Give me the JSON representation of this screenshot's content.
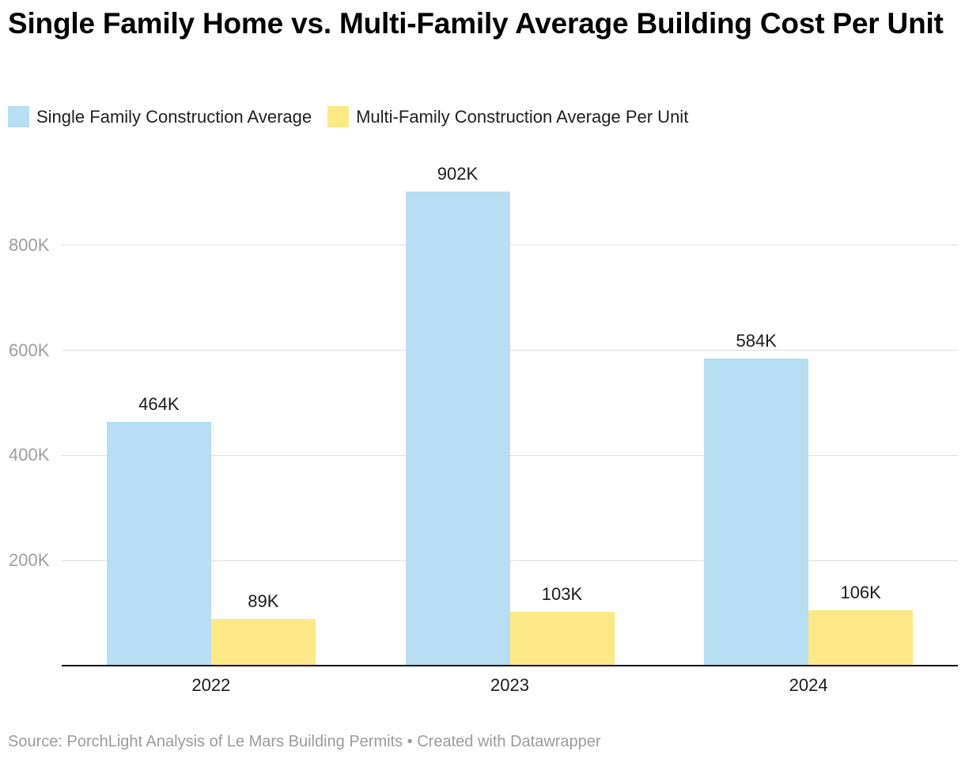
{
  "title": "Single Family Home vs. Multi-Family Average Building Cost Per Unit",
  "legend": [
    {
      "label": "Single Family Construction Average",
      "color": "#b7def2"
    },
    {
      "label": "Multi-Family Construction Average Per Unit",
      "color": "#fce985"
    }
  ],
  "source": "Source: PorchLight Analysis of Le Mars Building Permits • Created with Datawrapper",
  "colors": {
    "single_family": "#b7def2",
    "multi_family": "#fce985",
    "gridline": "#dfdfdf",
    "axis_line": "#141414",
    "tick_label": "#9d9d9d",
    "value_label": "#1b1b1b"
  },
  "chart_data": {
    "type": "bar",
    "title": "Single Family Home vs. Multi-Family Average Building Cost Per Unit",
    "categories": [
      "2022",
      "2023",
      "2024"
    ],
    "series": [
      {
        "name": "Single Family Construction Average",
        "color": "#b7def2",
        "values": [
          464000,
          902000,
          584000
        ],
        "labels": [
          "464K",
          "902K",
          "584K"
        ]
      },
      {
        "name": "Multi-Family Construction Average Per Unit",
        "color": "#fce985",
        "values": [
          89000,
          103000,
          106000
        ],
        "labels": [
          "89K",
          "103K",
          "106K"
        ]
      }
    ],
    "y_axis": {
      "ticks": [
        200000,
        400000,
        600000,
        800000
      ],
      "tick_labels": [
        "200K",
        "400K",
        "600K",
        "800K"
      ],
      "ylim": [
        0,
        1000000
      ]
    },
    "xlabel": "",
    "ylabel": "",
    "grid": true,
    "legend_position": "top"
  }
}
